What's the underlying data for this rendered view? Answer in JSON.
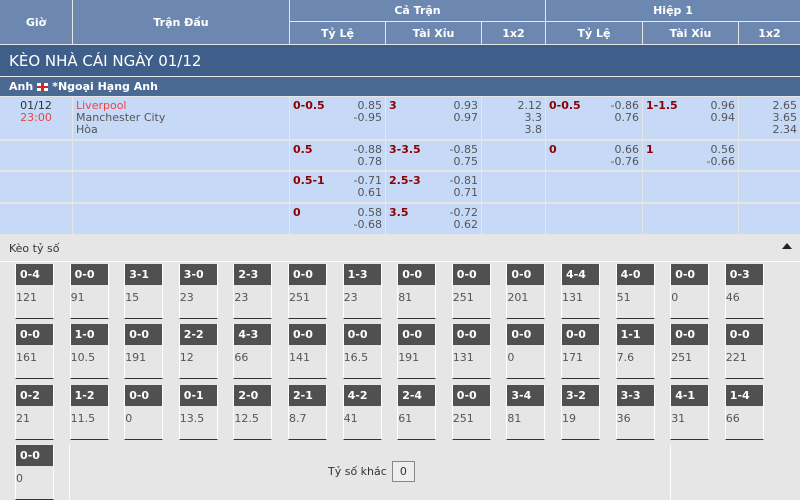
{
  "header": {
    "gio": "Giờ",
    "tran_dau": "Trận Đấu",
    "ca_tran": "Cả Trận",
    "hiep1": "Hiệp 1",
    "ty_le": "Tỷ Lệ",
    "tai_xiu": "Tài Xỉu",
    "x12": "1x2"
  },
  "banner": "KÈO NHÀ CÁI NGÀY 01/12",
  "league": {
    "country": "Anh",
    "name": "*Ngoại Hạng Anh",
    "flag": "england-flag"
  },
  "match": {
    "date": "01/12",
    "time": "23:00",
    "home": "Liverpool",
    "away": "Manchester City",
    "draw": "Hòa"
  },
  "rows": [
    {
      "ft_hdp": "0-0.5",
      "ft_hdp_o": [
        "0.85",
        "-0.95"
      ],
      "ft_ou": "3",
      "ft_ou_o": [
        "0.93",
        "0.97"
      ],
      "ft_1x2": [
        "2.12",
        "3.3",
        "3.8"
      ],
      "h1_hdp": "0-0.5",
      "h1_hdp_o": [
        "-0.86",
        "0.76"
      ],
      "h1_ou": "1-1.5",
      "h1_ou_o": [
        "0.96",
        "0.94"
      ],
      "h1_1x2": [
        "2.65",
        "3.65",
        "2.34"
      ]
    },
    {
      "ft_hdp": "0.5",
      "ft_hdp_o": [
        "-0.88",
        "0.78"
      ],
      "ft_ou": "3-3.5",
      "ft_ou_o": [
        "-0.85",
        "0.75"
      ],
      "h1_hdp": "0",
      "h1_hdp_o": [
        "0.66",
        "-0.76"
      ],
      "h1_ou": "1",
      "h1_ou_o": [
        "0.56",
        "-0.66"
      ]
    },
    {
      "ft_hdp": "0.5-1",
      "ft_hdp_o": [
        "-0.71",
        "0.61"
      ],
      "ft_ou": "2.5-3",
      "ft_ou_o": [
        "-0.81",
        "0.71"
      ]
    },
    {
      "ft_hdp": "0",
      "ft_hdp_o": [
        "0.58",
        "-0.68"
      ],
      "ft_ou": "3.5",
      "ft_ou_o": [
        "-0.72",
        "0.62"
      ]
    }
  ],
  "keo_ty_so": {
    "title": "Kèo tỷ số",
    "collapse_icon": "caret-up-icon",
    "other_label": "Tỷ số khác",
    "other_value": "0",
    "cards": [
      [
        [
          "0-4",
          "121"
        ],
        [
          "0-0",
          "91"
        ],
        [
          "3-1",
          "15"
        ],
        [
          "3-0",
          "23"
        ],
        [
          "2-3",
          "23"
        ],
        [
          "0-0",
          "251"
        ],
        [
          "1-3",
          "23"
        ],
        [
          "0-0",
          "81"
        ],
        [
          "0-0",
          "251"
        ],
        [
          "0-0",
          "201"
        ],
        [
          "4-4",
          "131"
        ],
        [
          "4-0",
          "51"
        ],
        [
          "0-0",
          "0"
        ],
        [
          "0-3",
          "46"
        ]
      ],
      [
        [
          "0-0",
          "161"
        ],
        [
          "1-0",
          "10.5"
        ],
        [
          "0-0",
          "191"
        ],
        [
          "2-2",
          "12"
        ],
        [
          "4-3",
          "66"
        ],
        [
          "0-0",
          "141"
        ],
        [
          "0-0",
          "16.5"
        ],
        [
          "0-0",
          "191"
        ],
        [
          "0-0",
          "131"
        ],
        [
          "0-0",
          "0"
        ],
        [
          "0-0",
          "171"
        ],
        [
          "1-1",
          "7.6"
        ],
        [
          "0-0",
          "251"
        ],
        [
          "0-0",
          "221"
        ]
      ],
      [
        [
          "0-2",
          "21"
        ],
        [
          "1-2",
          "11.5"
        ],
        [
          "0-0",
          "0"
        ],
        [
          "0-1",
          "13.5"
        ],
        [
          "2-0",
          "12.5"
        ],
        [
          "2-1",
          "8.7"
        ],
        [
          "4-2",
          "41"
        ],
        [
          "2-4",
          "61"
        ],
        [
          "0-0",
          "251"
        ],
        [
          "3-4",
          "81"
        ],
        [
          "3-2",
          "19"
        ],
        [
          "3-3",
          "36"
        ],
        [
          "4-1",
          "31"
        ],
        [
          "1-4",
          "66"
        ]
      ],
      [
        [
          "0-0",
          "0"
        ]
      ]
    ]
  }
}
